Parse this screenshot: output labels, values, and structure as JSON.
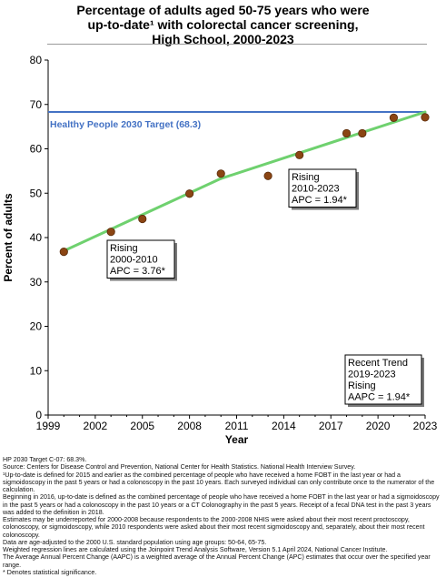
{
  "title_lines": [
    "Percentage of adults aged 50-75 years who were",
    "up-to-date¹ with colorectal cancer screening,",
    "High School,  2000-2023"
  ],
  "colors": {
    "axis": "#000000",
    "target_line": "#4472c4",
    "target_label": "#4472c4",
    "trend_line": "#6fd16f",
    "marker_fill": "#8b4513",
    "marker_stroke": "#5a2d0c"
  },
  "chart_data": {
    "type": "scatter",
    "xlabel": "Year",
    "ylabel": "Percent of adults",
    "xlim": [
      1999,
      2023
    ],
    "ylim": [
      0,
      80
    ],
    "x_ticks": [
      1999,
      2002,
      2005,
      2008,
      2011,
      2014,
      2017,
      2020,
      2023
    ],
    "y_ticks": [
      0,
      10,
      20,
      30,
      40,
      50,
      60,
      70,
      80
    ],
    "grid": false,
    "observed": {
      "x": [
        2000,
        2003,
        2005,
        2008,
        2010,
        2013,
        2015,
        2018,
        2019,
        2021,
        2023
      ],
      "y": [
        36.8,
        41.3,
        44.2,
        49.9,
        54.4,
        53.9,
        58.6,
        63.5,
        63.5,
        67.0,
        67.1
      ]
    },
    "trend_segments": [
      {
        "x": [
          2000,
          2010
        ],
        "y": [
          37.0,
          53.3
        ]
      },
      {
        "x": [
          2010,
          2023
        ],
        "y": [
          53.3,
          68.3
        ]
      }
    ],
    "target": {
      "value": 68.3,
      "label": "Healthy People 2030 Target (68.3)"
    },
    "annotations": [
      {
        "lines": [
          "Rising",
          "2000-2010",
          "APC =  3.76*"
        ]
      },
      {
        "lines": [
          "Rising",
          "2010-2023",
          "APC =  1.94*"
        ]
      },
      {
        "lines": [
          "Recent Trend",
          "2019-2023",
          "Rising",
          "AAPC =  1.94*"
        ]
      }
    ]
  },
  "notes": [
    "HP 2030 Target C-07: 68.3%.",
    "Source: Centers for Disease Control and Prevention, National Center for Health Statistics. National Health Interview Survey.",
    "¹Up-to-date is defined for 2015 and earlier as the combined percentage of people who have received a home FOBT in the last year or had a sigmoidoscopy in the past 5 years or had a colonoscopy in the past 10 years. Each surveyed individual can only contribute once to the numerator of the calculation.",
    "Beginning in 2016, up-to-date is defined as the combined percentage of people who have received a home FOBT in the last year or had a sigmoidoscopy in the past 5 years or had a colonoscopy in the past 10 years or a CT Colonography in the past 5 years. Receipt of a fecal DNA test in the past 3 years was added to the definition in 2018.",
    "Estimates may be underreported for 2000-2008 because respondents to the 2000-2008 NHIS were asked about their most recent proctoscopy, colonoscopy, or sigmoidoscopy, while 2010 respondents were asked about their most recent sigmoidoscopy and, separately, about their most recent colonoscopy.",
    "Data are age-adjusted to the 2000 U.S. standard population using age groups: 50-64, 65-75.",
    "Weighted regression lines are calculated using the Joinpoint Trend Analysis Software, Version 5.1 April 2024, National Cancer Institute.",
    "The Average Annual Percent Change (AAPC) is a weighted average of the Annual Percent Change (APC) estimates that occur over the specified year range.",
    "* Denotes statistical significance."
  ]
}
